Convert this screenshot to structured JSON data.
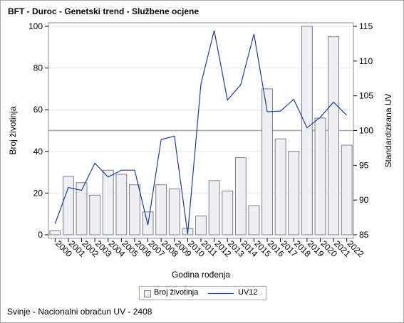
{
  "title": "BFT - Duroc - Genetski trend - Službene ocjene",
  "footnote": "Svinje - Nacionalni obračun UV - 2408",
  "chart_data": {
    "type": "bar+line",
    "title": "BFT - Duroc - Genetski trend - Službene ocjene",
    "xlabel": "Godina rođenja",
    "ylabel": "Broj životinja",
    "y2label": "Standardizirana UV",
    "ylim": [
      0,
      100
    ],
    "y2lim": [
      85,
      115
    ],
    "yticks": [
      0,
      20,
      40,
      60,
      80,
      100
    ],
    "y2ticks": [
      85,
      90,
      95,
      100,
      105,
      110,
      115
    ],
    "reference_line_y2": 100,
    "grid": true,
    "legend_position": "bottom",
    "categories": [
      "2000",
      "2001",
      "2002",
      "2003",
      "2004",
      "2005",
      "2006",
      "2007",
      "2008",
      "2009",
      "2010",
      "2011",
      "2012",
      "2013",
      "2014",
      "2015",
      "2016",
      "2017",
      "2018",
      "2019",
      "2020",
      "2021",
      "2022"
    ],
    "series": [
      {
        "name": "Broj životinja",
        "type": "bar",
        "axis": "left",
        "values": [
          2,
          28,
          25,
          19,
          31,
          29,
          24,
          11,
          24,
          22,
          3,
          9,
          26,
          21,
          37,
          14,
          70,
          46,
          40,
          100,
          56,
          95,
          43
        ]
      },
      {
        "name": "UV12",
        "type": "line",
        "axis": "right",
        "values": [
          86.6,
          91.8,
          91.4,
          95.3,
          93.3,
          94.3,
          94.3,
          86.4,
          98.7,
          99.2,
          85.1,
          106.7,
          114.4,
          104.4,
          106.6,
          113.9,
          102.7,
          102.8,
          104.5,
          100.4,
          101.9,
          104.1,
          102.2
        ]
      }
    ],
    "colors": {
      "bar_fill": "#eef0f4",
      "bar_stroke": "#7a7f8a",
      "line": "#1f3d8f",
      "reference": "#a6a6a6"
    }
  }
}
